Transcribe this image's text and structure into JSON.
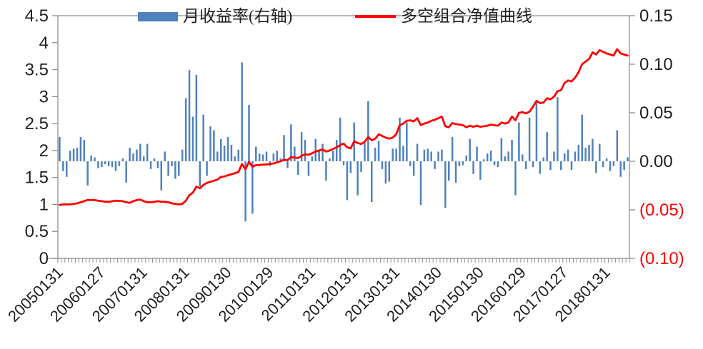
{
  "chart_data": {
    "type": "combo",
    "title": "",
    "grid": "off",
    "legend_position": "top-center",
    "n_months": 163,
    "legend": [
      {
        "label": "月收益率(右轴)",
        "marker": "bar",
        "color": "#4F81BD"
      },
      {
        "label": "多空组合净值曲线",
        "marker": "line",
        "color": "#FF0000"
      }
    ],
    "left_axis": {
      "min": 0,
      "max": 4.5,
      "step": 0.5,
      "ticks": [
        "4.5",
        "4",
        "3.5",
        "3",
        "2.5",
        "2",
        "1.5",
        "1",
        "0.5",
        "0"
      ],
      "color": "#1f1f1f"
    },
    "right_axis": {
      "min": -0.1,
      "max": 0.15,
      "step": 0.05,
      "ticks": [
        "0.15",
        "0.10",
        "0.05",
        "0.00",
        "(0.05)",
        "(0.10)"
      ],
      "color": "#1f1f1f",
      "negative_color": "#FF0000"
    },
    "x_axis": {
      "tick_labels": [
        "20050131",
        "20060127",
        "20070131",
        "20080131",
        "20090130",
        "20100129",
        "20110131",
        "20120131",
        "20130131",
        "20140130",
        "20150130",
        "20160129",
        "20170127",
        "20180131"
      ],
      "tick_month_indices": [
        0,
        12,
        24,
        36,
        48,
        60,
        72,
        84,
        96,
        108,
        120,
        132,
        144,
        156
      ],
      "rotation_deg": -45
    },
    "series": [
      {
        "name": "月收益率(右轴)",
        "type": "bar",
        "axis": "right",
        "color": "#4F81BD",
        "values": [
          0.025,
          -0.01,
          -0.016,
          0.011,
          0.013,
          0.014,
          0.025,
          0.022,
          -0.025,
          0.006,
          0.004,
          -0.007,
          -0.006,
          -0.003,
          -0.005,
          -0.006,
          -0.01,
          -0.005,
          0.003,
          -0.022,
          0.014,
          0.008,
          0.012,
          0.018,
          0.005,
          0.018,
          -0.008,
          0.003,
          -0.007,
          -0.03,
          0.01,
          -0.015,
          -0.005,
          -0.018,
          -0.015,
          0.012,
          0.065,
          0.094,
          0.046,
          0.089,
          -0.026,
          0.048,
          -0.015,
          0.036,
          0.032,
          0.01,
          0.023,
          0.016,
          0.025,
          0.017,
          0.005,
          0.012,
          0.102,
          -0.062,
          0.058,
          -0.054,
          0.015,
          0.008,
          0.007,
          0.01,
          -0.005,
          0.008,
          0.011,
          0.003,
          0.027,
          -0.007,
          0.038,
          0.015,
          -0.014,
          0.03,
          0.022,
          -0.015,
          0.005,
          0.023,
          0.012,
          0.018,
          -0.02,
          0.003,
          0.011,
          0.022,
          0.045,
          -0.004,
          -0.04,
          -0.012,
          0.04,
          -0.035,
          -0.011,
          0.019,
          0.062,
          -0.042,
          0.014,
          0.021,
          -0.008,
          -0.023,
          -0.021,
          0.013,
          0.013,
          0.045,
          0.016,
          0.04,
          -0.005,
          -0.015,
          0.018,
          -0.045,
          0.012,
          0.013,
          0.01,
          -0.008,
          0.01,
          0.012,
          -0.048,
          -0.02,
          0.025,
          -0.022,
          -0.005,
          -0.004,
          0.006,
          0.023,
          -0.013,
          0.015,
          -0.019,
          0.002,
          0.008,
          0.011,
          -0.004,
          -0.006,
          0.024,
          0.005,
          0.01,
          0.022,
          -0.035,
          0.04,
          0.007,
          -0.008,
          0.045,
          -0.006,
          0.062,
          -0.013,
          0.004,
          0.03,
          -0.009,
          0.01,
          0.066,
          -0.009,
          0.008,
          0.012,
          -0.009,
          0.01,
          0.017,
          0.048,
          0.014,
          0.017,
          0.023,
          -0.012,
          0.018,
          -0.006,
          0.003,
          -0.01,
          -0.005,
          0.032,
          -0.016,
          -0.009,
          0.004
        ]
      },
      {
        "name": "多空组合净值曲线",
        "type": "line",
        "axis": "left",
        "color": "#FF0000",
        "values": [
          0.99,
          1.0,
          1.0,
          1.0,
          1.01,
          1.02,
          1.04,
          1.06,
          1.085,
          1.08,
          1.08,
          1.07,
          1.06,
          1.05,
          1.05,
          1.06,
          1.07,
          1.065,
          1.06,
          1.04,
          1.03,
          1.06,
          1.08,
          1.09,
          1.06,
          1.04,
          1.04,
          1.05,
          1.06,
          1.05,
          1.05,
          1.04,
          1.02,
          1.01,
          1.0,
          1.01,
          1.07,
          1.17,
          1.22,
          1.33,
          1.3,
          1.36,
          1.4,
          1.42,
          1.44,
          1.46,
          1.51,
          1.52,
          1.54,
          1.56,
          1.58,
          1.6,
          1.75,
          1.65,
          1.79,
          1.7,
          1.73,
          1.73,
          1.74,
          1.74,
          1.75,
          1.76,
          1.78,
          1.8,
          1.83,
          1.82,
          1.88,
          1.87,
          1.86,
          1.9,
          1.93,
          1.92,
          1.95,
          1.98,
          2.0,
          2.02,
          1.98,
          2.0,
          2.03,
          2.06,
          2.1,
          2.13,
          2.06,
          2.04,
          2.17,
          2.14,
          2.12,
          2.16,
          2.25,
          2.19,
          2.22,
          2.3,
          2.27,
          2.24,
          2.22,
          2.24,
          2.3,
          2.47,
          2.5,
          2.55,
          2.56,
          2.54,
          2.6,
          2.47,
          2.5,
          2.52,
          2.55,
          2.57,
          2.6,
          2.63,
          2.45,
          2.43,
          2.51,
          2.49,
          2.48,
          2.47,
          2.43,
          2.46,
          2.44,
          2.46,
          2.44,
          2.45,
          2.46,
          2.48,
          2.47,
          2.46,
          2.52,
          2.5,
          2.52,
          2.63,
          2.56,
          2.7,
          2.71,
          2.69,
          2.72,
          2.81,
          2.92,
          2.88,
          2.89,
          2.97,
          2.95,
          3.0,
          3.1,
          3.12,
          3.25,
          3.3,
          3.28,
          3.35,
          3.45,
          3.6,
          3.65,
          3.7,
          3.82,
          3.78,
          3.86,
          3.83,
          3.8,
          3.78,
          3.76,
          3.88,
          3.8,
          3.78,
          3.76
        ]
      }
    ]
  },
  "colors": {
    "bar": "#4F81BD",
    "line": "#FF0000",
    "axis": "#8E8E8E",
    "tick_text": "#1f1f1f",
    "negative_tick_text": "#FF0000",
    "background": "#FFFFFF"
  }
}
